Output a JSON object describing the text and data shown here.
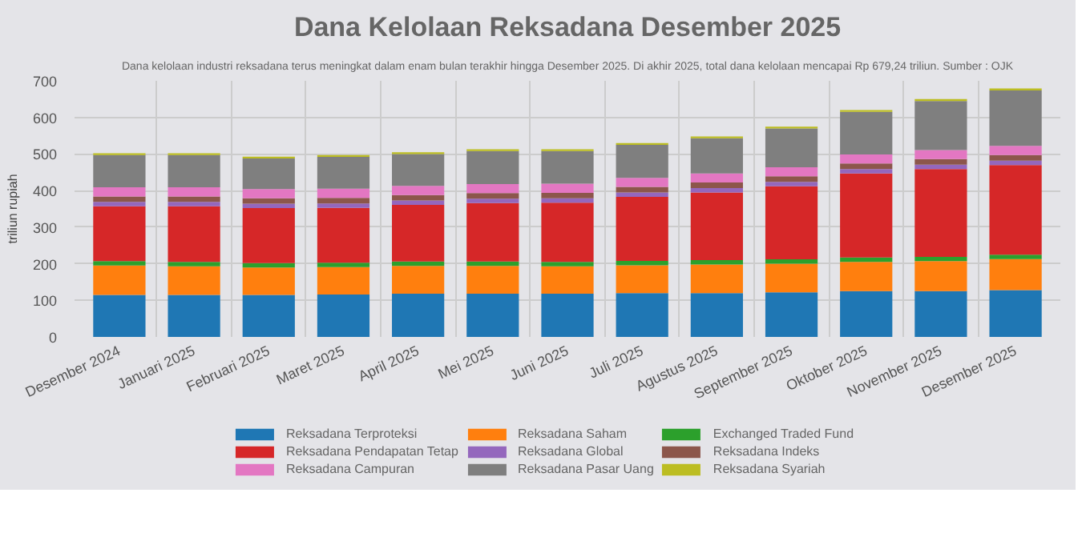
{
  "chart_data": {
    "type": "bar",
    "stacked": true,
    "title": "Dana Kelolaan Reksadana Desember 2025",
    "subtitle": "Dana kelolaan industri reksadana terus meningkat dalam enam bulan terakhir hingga Desember 2025. Di akhir 2025, total dana kelolaan mencapai Rp 679,24 triliun. Sumber : OJK",
    "ylabel": "triliun rupiah",
    "categories": [
      "Desember 2024",
      "Januari 2025",
      "Februari 2025",
      "Maret 2025",
      "April 2025",
      "Mei 2025",
      "Juni 2025",
      "Juli 2025",
      "Agustus 2025",
      "September 2025",
      "Oktober 2025",
      "November 2025",
      "Desember 2025"
    ],
    "series": [
      {
        "name": "Reksadana Terproteksi",
        "color": "#1f77b4",
        "values": [
          115,
          115,
          115,
          116,
          118,
          118,
          118,
          120,
          120,
          122,
          125,
          125,
          128
        ]
      },
      {
        "name": "Reksadana Saham",
        "color": "#ff7f0e",
        "values": [
          80,
          78,
          75,
          75,
          76,
          76,
          75,
          76,
          78,
          78,
          80,
          82,
          85
        ]
      },
      {
        "name": "Exchanged Traded Fund",
        "color": "#2ca02c",
        "values": [
          12,
          12,
          12,
          12,
          12,
          12,
          12,
          12,
          12,
          12,
          12,
          12,
          12
        ]
      },
      {
        "name": "Reksadana Pendapatan Tetap",
        "color": "#d62728",
        "values": [
          150,
          152,
          150,
          150,
          155,
          160,
          162,
          175,
          185,
          200,
          230,
          240,
          245
        ]
      },
      {
        "name": "Reksadana Global",
        "color": "#9467bd",
        "values": [
          12,
          12,
          12,
          12,
          12,
          12,
          12,
          12,
          12,
          12,
          12,
          12,
          12
        ]
      },
      {
        "name": "Reksadana Indeks",
        "color": "#8c564b",
        "values": [
          15,
          15,
          15,
          15,
          15,
          15,
          15,
          15,
          15,
          15,
          15,
          15,
          15
        ]
      },
      {
        "name": "Reksadana Campuran",
        "color": "#e377c2",
        "values": [
          25,
          25,
          25,
          25,
          25,
          25,
          25,
          25,
          25,
          25,
          25,
          25,
          25
        ]
      },
      {
        "name": "Reksadana Pasar Uang",
        "color": "#7f7f7f",
        "values": [
          88,
          88,
          84,
          87,
          87,
          90,
          89,
          90,
          96,
          106,
          116,
          134,
          152
        ]
      },
      {
        "name": "Reksadana Syariah",
        "color": "#bcbd22",
        "values": [
          5,
          5,
          5,
          5,
          5,
          5,
          5,
          5,
          5,
          5,
          5,
          5,
          5
        ]
      }
    ],
    "ylim": [
      0,
      700
    ],
    "yticks": [
      0,
      100,
      200,
      300,
      400,
      500,
      600,
      700
    ],
    "grid": true,
    "legend": "bottom"
  }
}
